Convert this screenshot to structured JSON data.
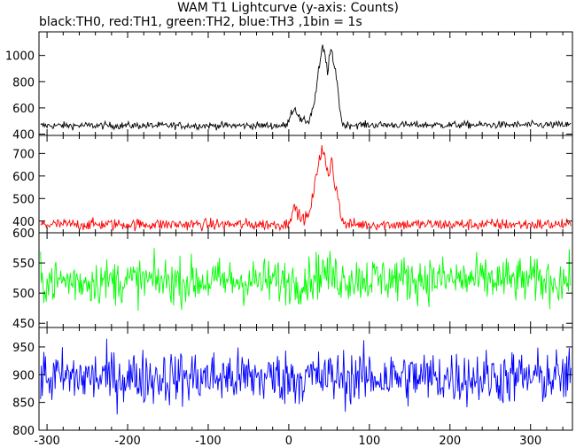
{
  "chart_data": {
    "type": "line",
    "title": "WAM T1 Lightcurve (y-axis: Counts)",
    "subtitle": "black:TH0, red:TH1, green:TH2, blue:TH3 ,1bin = 1s",
    "xlim": [
      -310,
      352
    ],
    "x_ticks": [
      "-300",
      "-200",
      "-100",
      "0",
      "100",
      "200",
      "300"
    ],
    "x_tick_values": [
      -300,
      -200,
      -100,
      0,
      100,
      200,
      300
    ],
    "grid": false,
    "panels": [
      {
        "name": "TH0",
        "color": "#000000",
        "ylim": [
          390,
          1180
        ],
        "y_ticks": [
          "400",
          "600",
          "800",
          "1000"
        ],
        "y_tick_values": [
          400,
          600,
          800,
          1000
        ],
        "baseline": 465,
        "noise": 14,
        "profile": [
          [
            -310,
            465
          ],
          [
            -2,
            465
          ],
          [
            2,
            560
          ],
          [
            8,
            600
          ],
          [
            15,
            500
          ],
          [
            25,
            500
          ],
          [
            32,
            650
          ],
          [
            38,
            920
          ],
          [
            42,
            1060
          ],
          [
            45,
            1000
          ],
          [
            48,
            880
          ],
          [
            52,
            1050
          ],
          [
            55,
            950
          ],
          [
            60,
            820
          ],
          [
            63,
            600
          ],
          [
            67,
            470
          ],
          [
            352,
            470
          ]
        ]
      },
      {
        "name": "TH1",
        "color": "#ff0000",
        "ylim": [
          348,
          780
        ],
        "y_ticks": [
          "400",
          "500",
          "600",
          "700"
        ],
        "y_tick_values": [
          400,
          500,
          600,
          700
        ],
        "baseline": 385,
        "noise": 13,
        "profile": [
          [
            -310,
            385
          ],
          [
            -2,
            385
          ],
          [
            3,
            430
          ],
          [
            8,
            460
          ],
          [
            15,
            410
          ],
          [
            25,
            420
          ],
          [
            32,
            550
          ],
          [
            38,
            690
          ],
          [
            42,
            720
          ],
          [
            46,
            650
          ],
          [
            50,
            580
          ],
          [
            53,
            700
          ],
          [
            57,
            560
          ],
          [
            61,
            520
          ],
          [
            66,
            400
          ],
          [
            70,
            385
          ],
          [
            352,
            385
          ]
        ]
      },
      {
        "name": "TH2",
        "color": "#00ff00",
        "ylim": [
          443,
          600
        ],
        "y_ticks": [
          "450",
          "500",
          "550",
          "600"
        ],
        "y_tick_values": [
          450,
          500,
          550,
          600
        ],
        "baseline": 520,
        "noise": 19,
        "profile": [
          [
            -310,
            520
          ],
          [
            20,
            520
          ],
          [
            42,
            535
          ],
          [
            60,
            525
          ],
          [
            352,
            520
          ]
        ]
      },
      {
        "name": "TH3",
        "color": "#0000ff",
        "ylim": [
          800,
          985
        ],
        "y_ticks": [
          "800",
          "850",
          "900",
          "950"
        ],
        "y_tick_values": [
          800,
          850,
          900,
          950
        ],
        "baseline": 895,
        "noise": 25,
        "profile": [
          [
            -310,
            895
          ],
          [
            352,
            895
          ]
        ]
      }
    ]
  }
}
